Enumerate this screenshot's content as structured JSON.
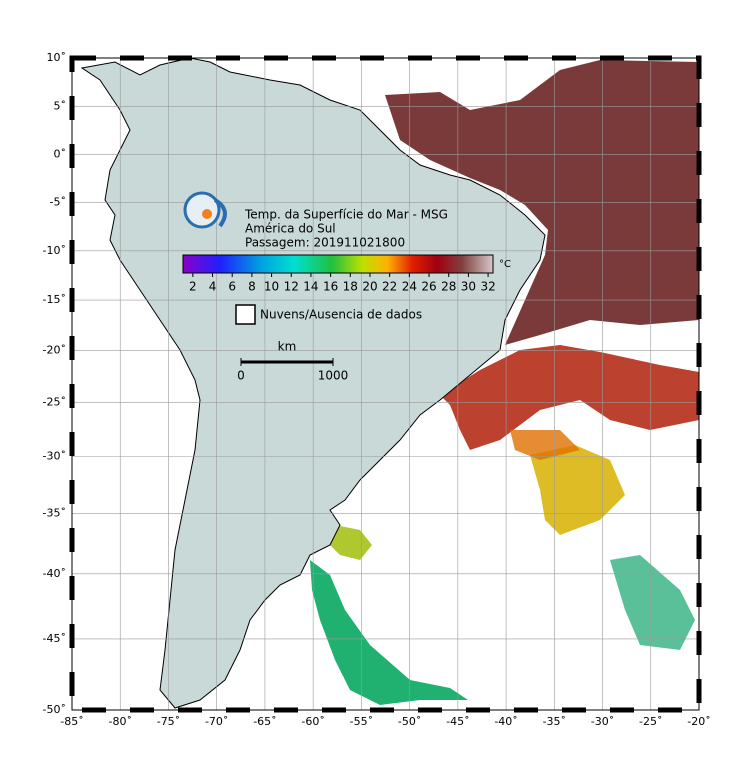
{
  "map": {
    "title_lines": [
      "Temp. da Superfície do Mar - MSG",
      "América do Sul",
      "Passagem: 201911021800"
    ],
    "projection": "mercator",
    "grid": true,
    "lon_lim": [
      -85,
      -20
    ],
    "lat_lim": [
      -50,
      10
    ],
    "lon_ticks": [
      {
        "value": -85,
        "label": "-85˚"
      },
      {
        "value": -80,
        "label": "-80˚"
      },
      {
        "value": -75,
        "label": "-75˚"
      },
      {
        "value": -70,
        "label": "-70˚"
      },
      {
        "value": -65,
        "label": "-65˚"
      },
      {
        "value": -60,
        "label": "-60˚"
      },
      {
        "value": -55,
        "label": "-55˚"
      },
      {
        "value": -50,
        "label": "-50˚"
      },
      {
        "value": -45,
        "label": "-45˚"
      },
      {
        "value": -40,
        "label": "-40˚"
      },
      {
        "value": -35,
        "label": "-35˚"
      },
      {
        "value": -30,
        "label": "-30˚"
      },
      {
        "value": -25,
        "label": "-25˚"
      },
      {
        "value": -20,
        "label": "-20˚"
      }
    ],
    "lat_ticks": [
      {
        "value": 10,
        "label": "10˚"
      },
      {
        "value": 5,
        "label": "5˚"
      },
      {
        "value": 0,
        "label": "0˚"
      },
      {
        "value": -5,
        "label": "-5˚"
      },
      {
        "value": -10,
        "label": "-10˚"
      },
      {
        "value": -15,
        "label": "-15˚"
      },
      {
        "value": -20,
        "label": "-20˚"
      },
      {
        "value": -25,
        "label": "-25˚"
      },
      {
        "value": -30,
        "label": "-30˚"
      },
      {
        "value": -35,
        "label": "-35˚"
      },
      {
        "value": -40,
        "label": "-40˚"
      },
      {
        "value": -45,
        "label": "-45˚"
      },
      {
        "value": -50,
        "label": "-50˚"
      }
    ],
    "colorbar": {
      "unit": "°C",
      "lim": [
        1,
        32.5
      ],
      "ticks": [
        2,
        4,
        6,
        8,
        10,
        12,
        14,
        16,
        18,
        20,
        22,
        24,
        26,
        28,
        30,
        32
      ]
    },
    "legend": {
      "label": "Nuvens/Ausencia de dados"
    },
    "scale_bar": {
      "unit": "km",
      "ticks": [
        0,
        1000
      ]
    }
  }
}
